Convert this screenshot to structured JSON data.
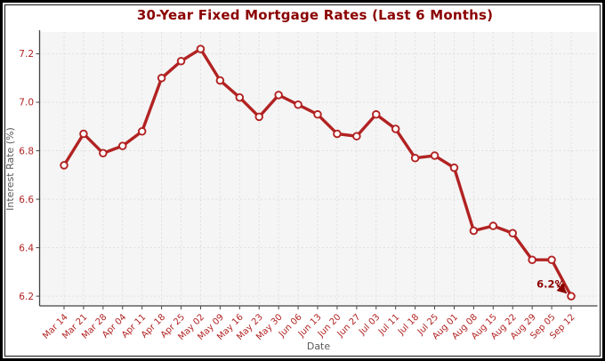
{
  "chart_data": {
    "type": "line",
    "title": "30-Year Fixed Mortgage Rates (Last 6 Months)",
    "xlabel": "Date",
    "ylabel": "Interest Rate (%)",
    "categories": [
      "Mar 14",
      "Mar 21",
      "Mar 28",
      "Apr 04",
      "Apr 11",
      "Apr 18",
      "Apr 25",
      "May 02",
      "May 09",
      "May 16",
      "May 23",
      "May 30",
      "Jun 06",
      "Jun 13",
      "Jun 20",
      "Jun 27",
      "Jul 03",
      "Jul 11",
      "Jul 18",
      "Jul 25",
      "Aug 01",
      "Aug 08",
      "Aug 15",
      "Aug 22",
      "Aug 29",
      "Sep 05",
      "Sep 12"
    ],
    "values": [
      6.74,
      6.87,
      6.79,
      6.82,
      6.88,
      7.1,
      7.17,
      7.22,
      7.09,
      7.02,
      6.94,
      7.03,
      6.99,
      6.95,
      6.87,
      6.86,
      6.95,
      6.89,
      6.77,
      6.78,
      6.73,
      6.47,
      6.49,
      6.46,
      6.35,
      6.35,
      6.2
    ],
    "yticks": [
      "6.2",
      "6.4",
      "6.6",
      "6.8",
      "7.0",
      "7.2"
    ],
    "ylim": [
      6.16,
      7.29
    ],
    "grid": true,
    "grid_style": "dashed",
    "legend": "none",
    "marker": "circle-open",
    "annotation": {
      "text": "6.2%",
      "target_category": "Sep 12",
      "target_value": 6.2
    },
    "colors": {
      "line": "#b22222",
      "marker_face": "#ffffff",
      "title": "#8b0000",
      "tick_labels": "#b22222",
      "axis_labels": "#595959",
      "annotation": "#8b0000",
      "plot_bg": "#f5f5f5",
      "grid": "#dcdcdc",
      "spine": "#454545",
      "figure_border": "#000000"
    }
  }
}
